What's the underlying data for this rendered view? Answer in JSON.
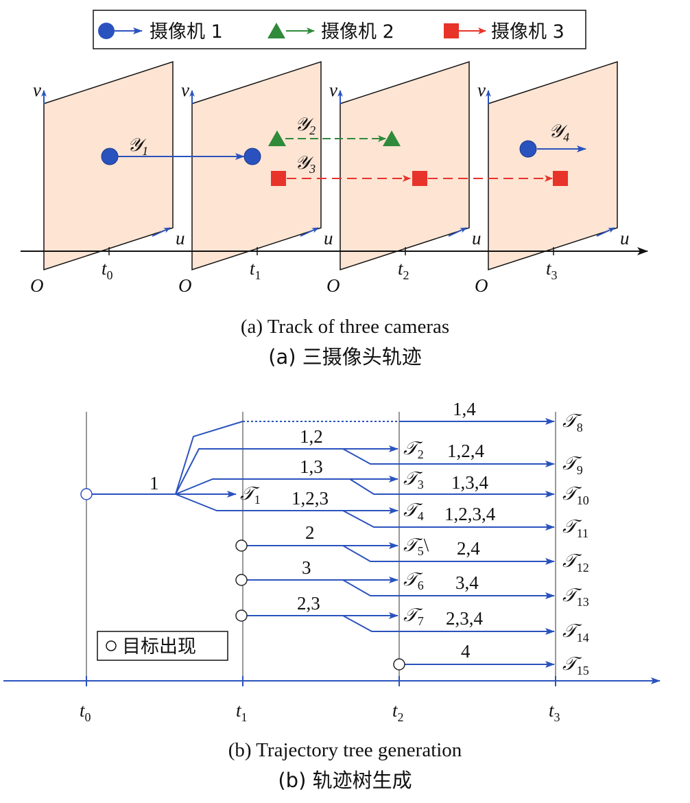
{
  "legend_a": [
    {
      "marker": "circle-marker",
      "label": "摄像机 1",
      "color": "#2a52be"
    },
    {
      "marker": "triangle-marker",
      "label": "摄像机 2",
      "color": "#2f8a3a"
    },
    {
      "marker": "square-marker",
      "label": "摄像机 3",
      "color": "#e8332a"
    }
  ],
  "panel_a": {
    "axis_v": "v",
    "axis_u": "u",
    "origin": "O",
    "times": [
      "t0",
      "t1",
      "t2",
      "t3"
    ],
    "time_base": "t",
    "time_subs": [
      "0",
      "1",
      "2",
      "3"
    ],
    "tracks": [
      {
        "symbol": "𝒴",
        "sub": "1"
      },
      {
        "symbol": "𝒴",
        "sub": "2"
      },
      {
        "symbol": "𝒴",
        "sub": "3"
      },
      {
        "symbol": "𝒴",
        "sub": "4"
      }
    ],
    "caption_en": "(a) Track of three cameras",
    "caption_cn": "(a) 三摄像头轨迹"
  },
  "panel_b": {
    "time_base": "t",
    "time_subs": [
      "0",
      "1",
      "2",
      "3"
    ],
    "legend_label": "目标出现",
    "branch_labels": [
      "1",
      "1,2",
      "1,3",
      "1,2,3",
      "2",
      "3",
      "2,3",
      "1,4",
      "1,2,4",
      "1,3,4",
      "1,2,3,4",
      "2,4",
      "3,4",
      "2,3,4",
      "4"
    ],
    "tree_symbol": "𝒯",
    "nodes_t2": [
      {
        "sub": "1"
      },
      {
        "sub": "2"
      },
      {
        "sub": "3"
      },
      {
        "sub": "4"
      },
      {
        "sub": "5",
        "suffix": "\\"
      },
      {
        "sub": "6"
      },
      {
        "sub": "7"
      }
    ],
    "nodes_t3": [
      "8",
      "9",
      "10",
      "11",
      "12",
      "13",
      "14",
      "15"
    ],
    "caption_en": "(b) Trajectory tree generation",
    "caption_cn": "(b) 轨迹树生成"
  },
  "colors": {
    "blue": "#2a52be",
    "green": "#2f8a3a",
    "red": "#e8332a",
    "plane": "#fde4d3"
  }
}
